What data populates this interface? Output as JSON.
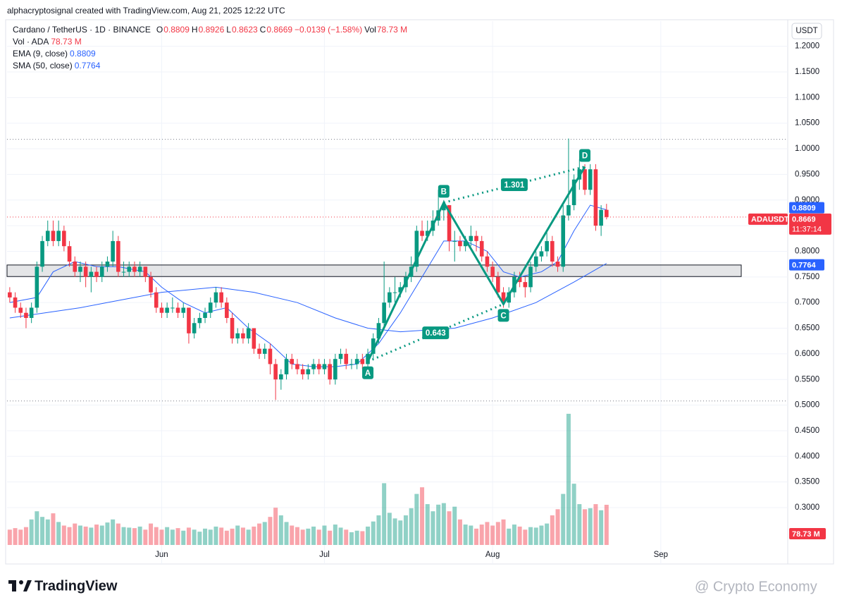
{
  "header": {
    "credit": "alphacryptosignal created with TradingView.com, Aug 21, 2025 12:22 UTC"
  },
  "chart_data": {
    "type": "candlestick",
    "title": "Cardano / TetherUS · 1D · BINANCE",
    "legend_keys": [
      "O",
      "H",
      "L",
      "C"
    ],
    "change_label": "−0.0139 (−1.58%)",
    "vol_key": "Vol",
    "currency": "USDT",
    "up_color": "#089981",
    "down_color": "#f23645",
    "ohlc": [
      [
        0.72,
        0.73,
        0.7,
        0.71
      ],
      [
        0.71,
        0.72,
        0.68,
        0.69
      ],
      [
        0.69,
        0.7,
        0.67,
        0.68
      ],
      [
        0.68,
        0.69,
        0.65,
        0.67
      ],
      [
        0.67,
        0.7,
        0.66,
        0.69
      ],
      [
        0.69,
        0.78,
        0.68,
        0.77
      ],
      [
        0.77,
        0.83,
        0.76,
        0.82
      ],
      [
        0.82,
        0.86,
        0.81,
        0.84
      ],
      [
        0.84,
        0.86,
        0.81,
        0.82
      ],
      [
        0.82,
        0.86,
        0.81,
        0.84
      ],
      [
        0.84,
        0.85,
        0.8,
        0.81
      ],
      [
        0.81,
        0.82,
        0.77,
        0.78
      ],
      [
        0.78,
        0.79,
        0.75,
        0.76
      ],
      [
        0.76,
        0.78,
        0.74,
        0.77
      ],
      [
        0.77,
        0.78,
        0.73,
        0.75
      ],
      [
        0.75,
        0.77,
        0.72,
        0.76
      ],
      [
        0.76,
        0.77,
        0.74,
        0.75
      ],
      [
        0.75,
        0.78,
        0.74,
        0.77
      ],
      [
        0.77,
        0.79,
        0.76,
        0.78
      ],
      [
        0.78,
        0.84,
        0.77,
        0.82
      ],
      [
        0.82,
        0.83,
        0.75,
        0.76
      ],
      [
        0.76,
        0.78,
        0.75,
        0.76
      ],
      [
        0.76,
        0.78,
        0.75,
        0.77
      ],
      [
        0.77,
        0.78,
        0.75,
        0.76
      ],
      [
        0.76,
        0.78,
        0.75,
        0.77
      ],
      [
        0.77,
        0.77,
        0.74,
        0.75
      ],
      [
        0.75,
        0.76,
        0.71,
        0.72
      ],
      [
        0.72,
        0.73,
        0.68,
        0.69
      ],
      [
        0.69,
        0.7,
        0.67,
        0.68
      ],
      [
        0.68,
        0.7,
        0.67,
        0.69
      ],
      [
        0.69,
        0.71,
        0.68,
        0.69
      ],
      [
        0.69,
        0.7,
        0.67,
        0.68
      ],
      [
        0.68,
        0.7,
        0.67,
        0.69
      ],
      [
        0.69,
        0.69,
        0.62,
        0.64
      ],
      [
        0.64,
        0.67,
        0.63,
        0.66
      ],
      [
        0.66,
        0.68,
        0.65,
        0.67
      ],
      [
        0.67,
        0.69,
        0.66,
        0.68
      ],
      [
        0.68,
        0.71,
        0.67,
        0.7
      ],
      [
        0.7,
        0.73,
        0.69,
        0.72
      ],
      [
        0.72,
        0.73,
        0.69,
        0.7
      ],
      [
        0.7,
        0.71,
        0.66,
        0.67
      ],
      [
        0.67,
        0.68,
        0.62,
        0.63
      ],
      [
        0.63,
        0.65,
        0.62,
        0.64
      ],
      [
        0.64,
        0.65,
        0.62,
        0.63
      ],
      [
        0.63,
        0.66,
        0.62,
        0.65
      ],
      [
        0.65,
        0.65,
        0.6,
        0.61
      ],
      [
        0.61,
        0.62,
        0.59,
        0.6
      ],
      [
        0.6,
        0.62,
        0.59,
        0.61
      ],
      [
        0.61,
        0.62,
        0.56,
        0.58
      ],
      [
        0.58,
        0.59,
        0.51,
        0.55
      ],
      [
        0.55,
        0.57,
        0.53,
        0.56
      ],
      [
        0.56,
        0.6,
        0.55,
        0.59
      ],
      [
        0.59,
        0.6,
        0.57,
        0.58
      ],
      [
        0.58,
        0.59,
        0.56,
        0.57
      ],
      [
        0.57,
        0.58,
        0.55,
        0.56
      ],
      [
        0.56,
        0.58,
        0.55,
        0.57
      ],
      [
        0.57,
        0.59,
        0.56,
        0.58
      ],
      [
        0.58,
        0.59,
        0.56,
        0.57
      ],
      [
        0.57,
        0.59,
        0.56,
        0.58
      ],
      [
        0.58,
        0.59,
        0.54,
        0.55
      ],
      [
        0.55,
        0.6,
        0.54,
        0.59
      ],
      [
        0.59,
        0.61,
        0.58,
        0.6
      ],
      [
        0.6,
        0.61,
        0.57,
        0.58
      ],
      [
        0.58,
        0.59,
        0.57,
        0.58
      ],
      [
        0.58,
        0.6,
        0.57,
        0.59
      ],
      [
        0.59,
        0.6,
        0.57,
        0.58
      ],
      [
        0.58,
        0.61,
        0.57,
        0.6
      ],
      [
        0.6,
        0.64,
        0.59,
        0.63
      ],
      [
        0.63,
        0.67,
        0.62,
        0.66
      ],
      [
        0.66,
        0.78,
        0.65,
        0.7
      ],
      [
        0.7,
        0.73,
        0.69,
        0.72
      ],
      [
        0.72,
        0.75,
        0.7,
        0.72
      ],
      [
        0.72,
        0.74,
        0.71,
        0.73
      ],
      [
        0.73,
        0.76,
        0.72,
        0.75
      ],
      [
        0.75,
        0.79,
        0.74,
        0.77
      ],
      [
        0.77,
        0.85,
        0.76,
        0.84
      ],
      [
        0.84,
        0.86,
        0.82,
        0.83
      ],
      [
        0.83,
        0.86,
        0.82,
        0.84
      ],
      [
        0.84,
        0.88,
        0.83,
        0.86
      ],
      [
        0.86,
        0.92,
        0.85,
        0.88
      ],
      [
        0.88,
        0.9,
        0.86,
        0.89
      ],
      [
        0.89,
        0.89,
        0.8,
        0.82
      ],
      [
        0.82,
        0.84,
        0.78,
        0.82
      ],
      [
        0.82,
        0.83,
        0.8,
        0.81
      ],
      [
        0.81,
        0.83,
        0.8,
        0.82
      ],
      [
        0.82,
        0.85,
        0.81,
        0.83
      ],
      [
        0.83,
        0.84,
        0.8,
        0.82
      ],
      [
        0.82,
        0.83,
        0.78,
        0.79
      ],
      [
        0.79,
        0.8,
        0.76,
        0.77
      ],
      [
        0.77,
        0.78,
        0.74,
        0.75
      ],
      [
        0.75,
        0.76,
        0.71,
        0.72
      ],
      [
        0.72,
        0.73,
        0.69,
        0.7
      ],
      [
        0.7,
        0.73,
        0.69,
        0.72
      ],
      [
        0.72,
        0.76,
        0.71,
        0.75
      ],
      [
        0.75,
        0.76,
        0.73,
        0.74
      ],
      [
        0.74,
        0.75,
        0.71,
        0.73
      ],
      [
        0.73,
        0.78,
        0.72,
        0.77
      ],
      [
        0.77,
        0.8,
        0.76,
        0.79
      ],
      [
        0.79,
        0.81,
        0.78,
        0.8
      ],
      [
        0.8,
        0.84,
        0.79,
        0.82
      ],
      [
        0.82,
        0.83,
        0.77,
        0.78
      ],
      [
        0.78,
        0.79,
        0.76,
        0.77
      ],
      [
        0.77,
        0.89,
        0.76,
        0.87
      ],
      [
        0.87,
        1.02,
        0.86,
        0.89
      ],
      [
        0.89,
        0.95,
        0.88,
        0.94
      ],
      [
        0.94,
        0.98,
        0.92,
        0.96
      ],
      [
        0.96,
        0.97,
        0.91,
        0.92
      ],
      [
        0.92,
        0.97,
        0.91,
        0.96
      ],
      [
        0.96,
        0.97,
        0.84,
        0.85
      ],
      [
        0.85,
        0.89,
        0.83,
        0.8809
      ],
      [
        0.8809,
        0.8926,
        0.8623,
        0.8669
      ]
    ],
    "volume": {
      "name": "Vol · ADA",
      "last_label": "78.73 M",
      "values": [
        30,
        33,
        30,
        35,
        50,
        66,
        55,
        50,
        62,
        45,
        38,
        35,
        42,
        38,
        36,
        34,
        40,
        38,
        44,
        50,
        42,
        35,
        34,
        33,
        36,
        30,
        42,
        35,
        30,
        35,
        30,
        33,
        28,
        34,
        30,
        26,
        32,
        30,
        36,
        34,
        28,
        32,
        38,
        34,
        30,
        36,
        42,
        45,
        55,
        73,
        58,
        45,
        38,
        35,
        30,
        32,
        36,
        30,
        38,
        28,
        40,
        34,
        30,
        25,
        28,
        27,
        36,
        46,
        58,
        121,
        63,
        52,
        48,
        58,
        72,
        100,
        113,
        80,
        66,
        79,
        82,
        66,
        75,
        50,
        40,
        38,
        32,
        40,
        45,
        38,
        45,
        50,
        32,
        40,
        36,
        30,
        35,
        34,
        38,
        42,
        58,
        70,
        100,
        257,
        120,
        80,
        70,
        72,
        80,
        68,
        78.73
      ]
    },
    "ema": {
      "name": "EMA (9, close)",
      "color": "#2962ff",
      "x": [
        0,
        5,
        8,
        12,
        16,
        20,
        25,
        28,
        32,
        36,
        40,
        44,
        48,
        52,
        56,
        60,
        64,
        68,
        72,
        76,
        80,
        84,
        88,
        91,
        94,
        98,
        101,
        104,
        107,
        110
      ],
      "values": [
        0.7,
        0.71,
        0.76,
        0.78,
        0.77,
        0.77,
        0.76,
        0.73,
        0.7,
        0.68,
        0.69,
        0.65,
        0.62,
        0.58,
        0.575,
        0.575,
        0.58,
        0.62,
        0.68,
        0.75,
        0.82,
        0.82,
        0.8,
        0.76,
        0.75,
        0.76,
        0.78,
        0.84,
        0.89,
        0.8809
      ]
    },
    "sma": {
      "name": "SMA (50, close)",
      "color": "#2962ff",
      "x": [
        0,
        13,
        18,
        28,
        38,
        45,
        53,
        60,
        66,
        72,
        82,
        89,
        97,
        104,
        110
      ],
      "values": [
        0.67,
        0.69,
        0.7,
        0.72,
        0.73,
        0.72,
        0.7,
        0.67,
        0.65,
        0.643,
        0.65,
        0.67,
        0.7,
        0.74,
        0.7764
      ]
    },
    "xlim": [
      -0.5,
      143.4
    ],
    "xticks": [
      {
        "value": 28,
        "label": "Jun"
      },
      {
        "value": 58,
        "label": "Jul"
      },
      {
        "value": 89,
        "label": "Aug"
      },
      {
        "value": 120,
        "label": "Sep"
      }
    ],
    "ylim": [
      0.19,
      1.249
    ],
    "yticks": [
      {
        "value": 0.3,
        "label": "0.3000"
      },
      {
        "value": 0.35,
        "label": "0.3500"
      },
      {
        "value": 0.4,
        "label": "0.4000"
      },
      {
        "value": 0.45,
        "label": "0.4500"
      },
      {
        "value": 0.5,
        "label": "0.5000"
      },
      {
        "value": 0.55,
        "label": "0.5500"
      },
      {
        "value": 0.6,
        "label": "0.6000"
      },
      {
        "value": 0.65,
        "label": "0.6500"
      },
      {
        "value": 0.7,
        "label": "0.7000"
      },
      {
        "value": 0.75,
        "label": "0.7500"
      },
      {
        "value": 0.8,
        "label": "0.8000"
      },
      {
        "value": 0.85,
        "label": "0.8500"
      },
      {
        "value": 0.9,
        "label": "0.9000"
      },
      {
        "value": 0.95,
        "label": "0.9500"
      },
      {
        "value": 1.0,
        "label": "1.0000"
      },
      {
        "value": 1.05,
        "label": "1.0500"
      },
      {
        "value": 1.1,
        "label": "1.1000"
      },
      {
        "value": 1.15,
        "label": "1.1500"
      },
      {
        "value": 1.2,
        "label": "1.2000"
      }
    ],
    "grid": true,
    "zone": [
      0.7508,
      0.7733
    ],
    "levels": [
      1.0185,
      0.508
    ],
    "pattern": {
      "color": "#089981",
      "points": [
        {
          "label": "A",
          "x": 66,
          "y": 0.585
        },
        {
          "label": "B",
          "x": 80,
          "y": 0.895
        },
        {
          "label": "C",
          "x": 91,
          "y": 0.697
        },
        {
          "label": "D",
          "x": 106,
          "y": 0.965
        }
      ],
      "ratios": [
        0.643,
        1.301
      ]
    },
    "price_tag": {
      "symbol": "ADAUSDT",
      "countdown": "11:37:14"
    }
  },
  "footer": {
    "logo": "TradingView",
    "watermark": "@ Crypto Economy"
  }
}
